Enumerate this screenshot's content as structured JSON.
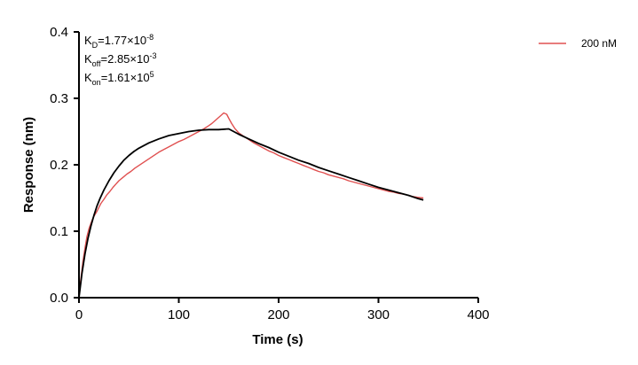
{
  "chart_data": {
    "type": "line",
    "xlabel": "Time (s)",
    "ylabel": "Response (nm)",
    "xlim": [
      0,
      400
    ],
    "ylim": [
      0,
      0.4
    ],
    "x_ticks": [
      0,
      100,
      200,
      300,
      400
    ],
    "x_tick_labels": [
      "0",
      "100",
      "200",
      "300",
      "400"
    ],
    "y_ticks": [
      0,
      0.1,
      0.2,
      0.3,
      0.4
    ],
    "y_tick_labels": [
      "0.0",
      "0.1",
      "0.2",
      "0.3",
      "0.4"
    ],
    "grid": false,
    "legend_position": "top-right",
    "annotations": [
      {
        "base": "K",
        "sub": "D",
        "value": "=1.77×10",
        "exp": "-8"
      },
      {
        "base": "K",
        "sub": "off",
        "value": "=2.85×10",
        "exp": "-3"
      },
      {
        "base": "K",
        "sub": "on",
        "value": "=1.61×10",
        "exp": "5"
      }
    ],
    "series": [
      {
        "name": "200 nM",
        "color": "#e05050",
        "x": [
          0,
          2,
          4,
          6,
          8,
          10,
          12,
          14,
          16,
          18,
          20,
          22,
          25,
          28,
          31,
          34,
          37,
          40,
          44,
          48,
          52,
          56,
          60,
          64,
          68,
          72,
          76,
          80,
          85,
          90,
          95,
          100,
          105,
          110,
          115,
          120,
          125,
          130,
          133,
          136,
          139,
          142,
          145,
          148,
          150,
          153,
          156,
          160,
          165,
          170,
          175,
          180,
          185,
          190,
          195,
          200,
          205,
          210,
          215,
          220,
          225,
          230,
          235,
          240,
          245,
          250,
          255,
          260,
          265,
          270,
          275,
          280,
          285,
          290,
          295,
          300,
          305,
          310,
          315,
          320,
          325,
          330,
          335,
          340,
          345
        ],
        "y": [
          0.006,
          0.03,
          0.055,
          0.075,
          0.092,
          0.104,
          0.112,
          0.12,
          0.125,
          0.13,
          0.136,
          0.142,
          0.148,
          0.155,
          0.16,
          0.166,
          0.171,
          0.176,
          0.181,
          0.186,
          0.19,
          0.195,
          0.199,
          0.203,
          0.207,
          0.211,
          0.215,
          0.219,
          0.223,
          0.227,
          0.231,
          0.235,
          0.238,
          0.242,
          0.246,
          0.25,
          0.254,
          0.259,
          0.262,
          0.266,
          0.27,
          0.274,
          0.278,
          0.276,
          0.27,
          0.262,
          0.255,
          0.248,
          0.243,
          0.238,
          0.233,
          0.229,
          0.225,
          0.221,
          0.218,
          0.214,
          0.211,
          0.208,
          0.205,
          0.202,
          0.199,
          0.196,
          0.193,
          0.19,
          0.188,
          0.185,
          0.183,
          0.181,
          0.179,
          0.176,
          0.174,
          0.172,
          0.17,
          0.168,
          0.166,
          0.164,
          0.162,
          0.16,
          0.159,
          0.157,
          0.156,
          0.154,
          0.152,
          0.151,
          0.15
        ]
      },
      {
        "name": "",
        "color": "#000000",
        "x": [
          0,
          3,
          6,
          9,
          12,
          15,
          18,
          21,
          25,
          30,
          35,
          40,
          45,
          50,
          55,
          60,
          70,
          80,
          90,
          100,
          110,
          120,
          130,
          140,
          150,
          155,
          160,
          170,
          180,
          190,
          200,
          210,
          220,
          230,
          240,
          250,
          260,
          270,
          280,
          290,
          300,
          310,
          320,
          330,
          340,
          345
        ],
        "y": [
          0,
          0.037,
          0.066,
          0.089,
          0.108,
          0.124,
          0.138,
          0.149,
          0.162,
          0.176,
          0.188,
          0.198,
          0.207,
          0.214,
          0.22,
          0.225,
          0.233,
          0.239,
          0.244,
          0.247,
          0.25,
          0.252,
          0.253,
          0.253,
          0.254,
          0.25,
          0.246,
          0.239,
          0.232,
          0.226,
          0.219,
          0.213,
          0.207,
          0.202,
          0.196,
          0.191,
          0.186,
          0.181,
          0.176,
          0.171,
          0.166,
          0.162,
          0.158,
          0.154,
          0.149,
          0.147
        ]
      }
    ]
  }
}
